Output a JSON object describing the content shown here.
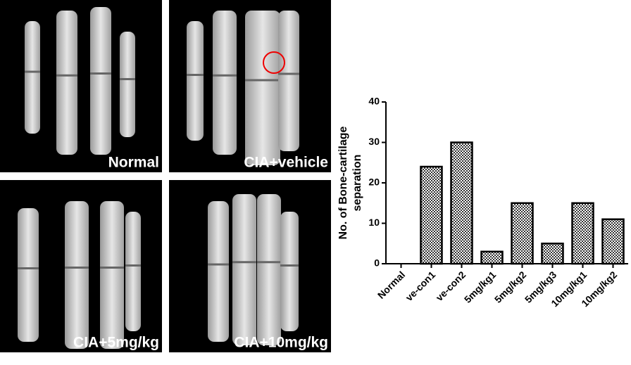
{
  "panels": [
    {
      "label": "Normal"
    },
    {
      "label": "CIA+vehicle"
    },
    {
      "label": "CIA+5mg/kg"
    },
    {
      "label": "CIA+10mg/kg"
    }
  ],
  "chart_data": {
    "type": "bar",
    "y_label": [
      "No. of Bone-cartilage",
      "separation"
    ],
    "categories": [
      "Normal",
      "ve-con1",
      "ve-con2",
      "5mg/kg1",
      "5mg/kg2",
      "5mg/kg3",
      "10mg/kg1",
      "10mg/kg2"
    ],
    "values": [
      0,
      24,
      30,
      3,
      15,
      5,
      15,
      11
    ],
    "color": "#333333",
    "ylim": [
      0,
      40
    ],
    "yticks": [
      0,
      10,
      20,
      30,
      40
    ]
  }
}
